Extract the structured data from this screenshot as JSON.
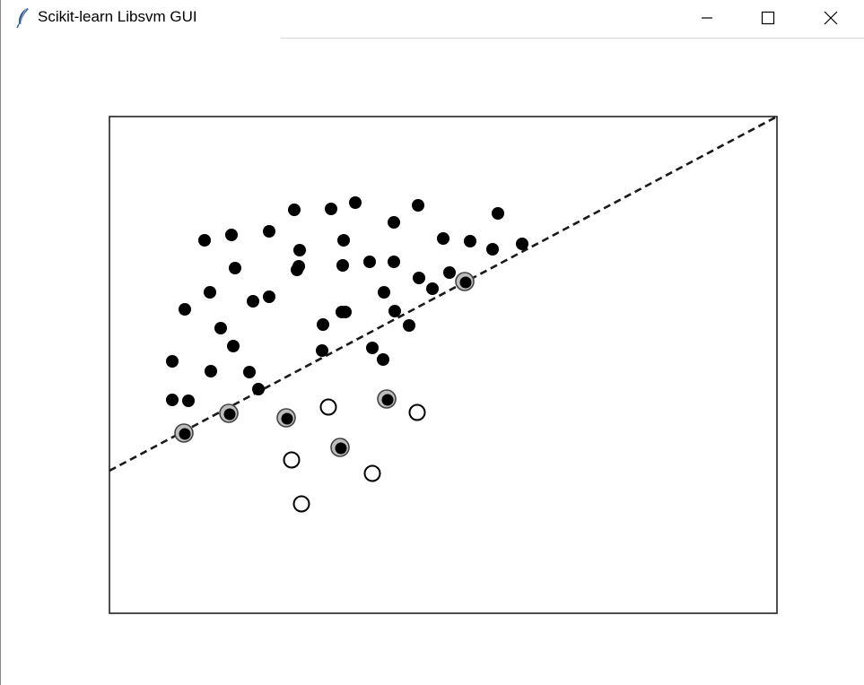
{
  "window": {
    "title": "Scikit-learn Libsvm GUI",
    "app_icon": "feather-icon",
    "controls": {
      "minimize": "minimize-icon",
      "maximize": "maximize-icon",
      "close": "close-icon"
    }
  },
  "chart_data": {
    "type": "scatter",
    "title": "",
    "xlabel": "",
    "ylabel": "",
    "xlim": [
      0,
      744
    ],
    "ylim": [
      0,
      554
    ],
    "grid": false,
    "axes_visible": false,
    "colors": {
      "point": "#000000",
      "support_vector_ring": "#444444",
      "decision_boundary": "#1a1a1a"
    },
    "decision_boundary": {
      "style": "dashed",
      "points": [
        [
          0,
          159
        ],
        [
          744,
          554
        ]
      ]
    },
    "series": [
      {
        "marker": "filled-circle",
        "x": [
          106,
          136,
          206,
          247,
          274,
          344,
          433,
          372,
          402,
          460,
          427,
          317,
          261,
          178,
          212,
          140,
          84,
          112,
          124,
          160,
          138,
          178,
          211,
          260,
          290,
          306,
          317,
          345,
          360,
          379,
          259,
          293,
          334,
          318,
          237,
          238,
          209,
          263,
          305,
          70,
          70,
          113,
          156,
          166,
          88
        ],
        "y": [
          416,
          422,
          450,
          451,
          458,
          455,
          446,
          418,
          415,
          412,
          406,
          436,
          416,
          426,
          405,
          385,
          339,
          358,
          318,
          348,
          298,
          353,
          387,
          388,
          392,
          358,
          392,
          374,
          362,
          380,
          336,
          296,
          321,
          337,
          293,
          322,
          383,
          336,
          283,
          281,
          238,
          270,
          269,
          250,
          237
        ]
      },
      {
        "marker": "hollow-circle",
        "x": [
          244,
          343,
          203,
          293,
          214
        ],
        "y": [
          230,
          224,
          171,
          156,
          122
        ]
      },
      {
        "marker": "filled-circle-support-vector",
        "x": [
          396,
          83,
          133,
          197,
          257,
          309
        ],
        "y": [
          370,
          201,
          223,
          218,
          185,
          239
        ]
      }
    ]
  }
}
